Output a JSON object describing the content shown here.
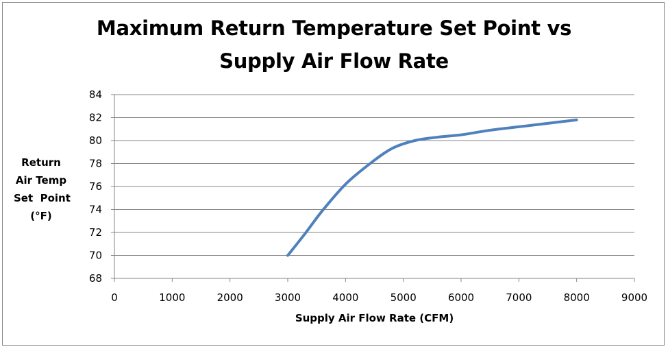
{
  "chart_data": {
    "type": "line",
    "title_line1": "Maximum Return Temperature Set Point vs",
    "title_line2": "Supply Air Flow Rate",
    "xlabel": "Supply Air Flow Rate (CFM)",
    "ylabel": "Return\nAir Temp\nSet  Point\n(°F)",
    "xlim": [
      0,
      9000
    ],
    "ylim": [
      68,
      84
    ],
    "xticks": [
      0,
      1000,
      2000,
      3000,
      4000,
      5000,
      6000,
      7000,
      8000,
      9000
    ],
    "yticks": [
      68,
      70,
      72,
      74,
      76,
      78,
      80,
      82,
      84
    ],
    "grid": true,
    "legend": false,
    "series": [
      {
        "color": "#4F81BD",
        "x": [
          3000,
          3300,
          3600,
          4000,
          4400,
          4800,
          5200,
          5600,
          6000,
          6500,
          7000,
          7500,
          8000
        ],
        "y": [
          70.0,
          71.9,
          73.9,
          76.2,
          77.9,
          79.3,
          80.0,
          80.3,
          80.5,
          80.9,
          81.2,
          81.5,
          81.8
        ]
      }
    ]
  }
}
